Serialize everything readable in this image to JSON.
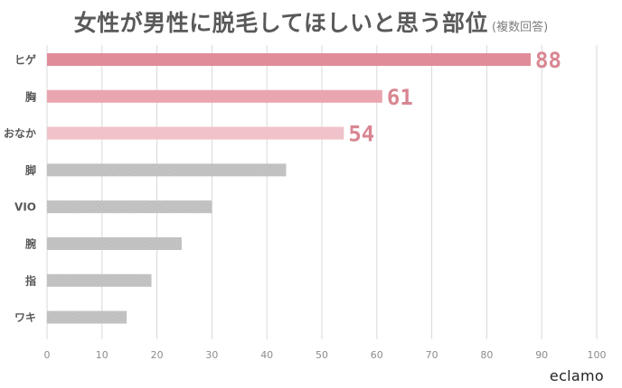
{
  "title": "女性が男性に脱毛してほしいと思う部位",
  "subtitle": "(複数回答)",
  "brand": "eclamo",
  "colors": {
    "highlight_1": "#e08d99",
    "highlight_2": "#e9a6b0",
    "highlight_3": "#f0c2c9",
    "neutral": "#bfbfbf",
    "value_label": "#d98692",
    "text": "#595959",
    "grid": "#d9d9d9"
  },
  "chart_data": {
    "type": "bar",
    "orientation": "horizontal",
    "categories": [
      "ヒゲ",
      "胸",
      "おなか",
      "脚",
      "VIO",
      "腕",
      "指",
      "ワキ"
    ],
    "values": [
      88,
      61,
      54,
      43.5,
      30,
      24.5,
      19,
      14.5
    ],
    "data_labels": [
      "88",
      "61",
      "54",
      "",
      "",
      "",
      "",
      ""
    ],
    "xlim": [
      0,
      100
    ],
    "xticks": [
      0,
      10,
      20,
      30,
      40,
      50,
      60,
      70,
      80,
      90,
      100
    ],
    "grid": "vertical",
    "legend": "none",
    "title": "女性が男性に脱毛してほしいと思う部位",
    "subtitle": "(複数回答)",
    "xlabel": "",
    "ylabel": ""
  }
}
